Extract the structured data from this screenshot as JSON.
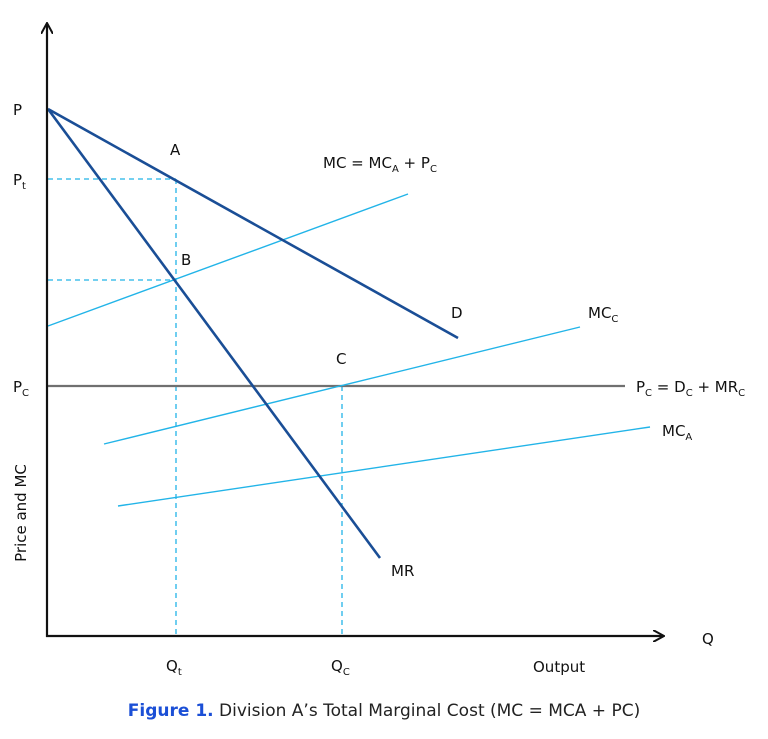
{
  "colors": {
    "dark_line": "#1a4e96",
    "light_line": "#22b4e8",
    "pc_line": "#707070",
    "axis": "#111111",
    "caption_accent": "#1b4fd6"
  },
  "axes": {
    "y_label": "Price and MC",
    "x_axis_letter": "Q",
    "x_label": "Output"
  },
  "y_ticks": {
    "p": "P",
    "pt_main": "P",
    "pt_sub": "t",
    "pc_main": "P",
    "pc_sub": "C"
  },
  "x_ticks": {
    "qt_main": "Q",
    "qt_sub": "t",
    "qc_main": "Q",
    "qc_sub": "C"
  },
  "points": {
    "a": "A",
    "b": "B",
    "c": "C"
  },
  "curves": {
    "d": "D",
    "mr": "MR",
    "mc_total": {
      "p1": "MC = MC",
      "s1": "A",
      "p2": " + P",
      "s2": "C"
    },
    "mcc": {
      "p1": "MC",
      "s1": "C"
    },
    "mca": {
      "p1": "MC",
      "s1": "A"
    },
    "pc_line": {
      "p1": "P",
      "s1": "C",
      "p2": " = D",
      "s2": "C",
      "p3": " + MR",
      "s3": "C"
    }
  },
  "caption": {
    "figure": "Figure 1.",
    "text": " Division A’s Total Marginal Cost (MC = MCA + PC)"
  }
}
